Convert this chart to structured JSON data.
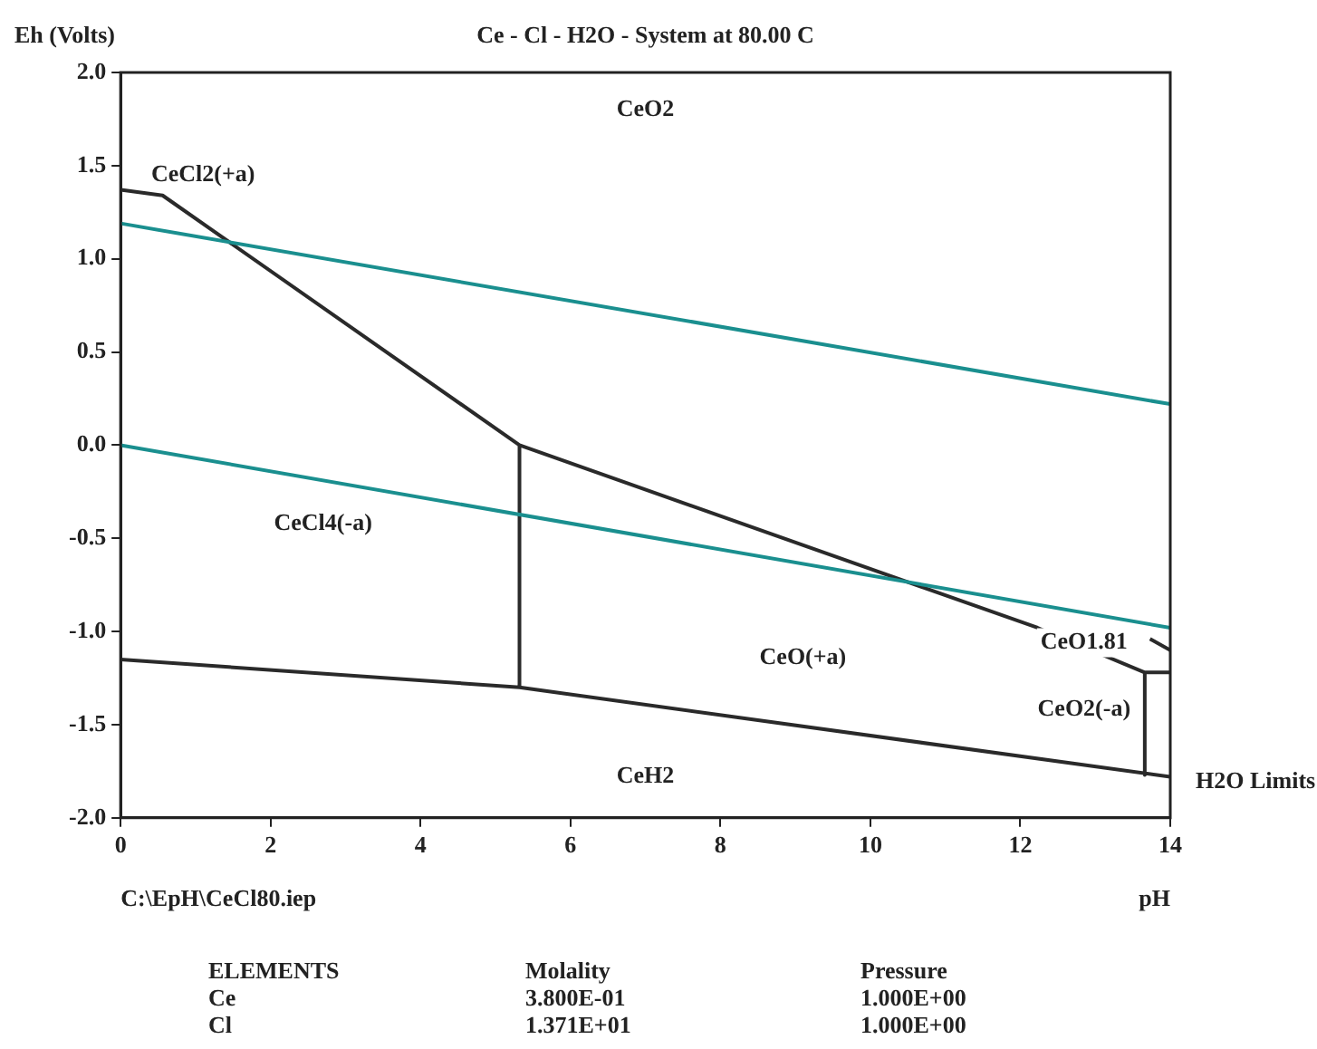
{
  "chart_data": {
    "type": "line",
    "title": "Ce - Cl - H2O - System at 80.00 C",
    "xlabel": "pH",
    "ylabel": "Eh (Volts)",
    "xlim": [
      0,
      14
    ],
    "xticks": [
      0,
      2,
      4,
      6,
      8,
      10,
      12,
      14
    ],
    "ylim": [
      -2,
      2
    ],
    "yticks": [
      {
        "value": -2,
        "label": "-2.0"
      },
      {
        "value": -1.5,
        "label": "-1.5"
      },
      {
        "value": -1,
        "label": "-1.0"
      },
      {
        "value": -0.5,
        "label": "-0.5"
      },
      {
        "value": 0,
        "label": "0.0"
      },
      {
        "value": 0.5,
        "label": "0.5"
      },
      {
        "value": 1,
        "label": "1.0"
      },
      {
        "value": 1.5,
        "label": "1.5"
      },
      {
        "value": 2,
        "label": "2.0"
      }
    ],
    "grid": false,
    "legend": false,
    "marker": "none",
    "line_style": "solid",
    "series": [
      {
        "color": "#1a8f8f",
        "x": [
          0,
          14
        ],
        "values": [
          1.19,
          0.22
        ]
      },
      {
        "color": "#1a8f8f",
        "x": [
          0,
          14
        ],
        "values": [
          0,
          -0.98
        ]
      },
      {
        "color": "#2a2a2a",
        "x": [
          0,
          5.32,
          14,
          null,
          5.32,
          5.32,
          0.56,
          0,
          null,
          5.32,
          12.23,
          13.66,
          14,
          null,
          13.66,
          13.66,
          null,
          13.73,
          14
        ],
        "values": [
          -1.15,
          -1.3,
          -1.78,
          null,
          -1.3,
          0,
          1.34,
          1.37,
          null,
          0,
          -0.98,
          -1.22,
          -1.22,
          null,
          -1.22,
          -1.77,
          null,
          -1.04,
          -1.1
        ]
      }
    ],
    "annotations": [
      "CeO2",
      "CeCl2(+a)",
      "CeCl4(-a)",
      "CeO(+a)",
      "CeO1.81",
      "CeO2(-a)",
      "CeH2",
      "H2O Limits",
      "C:\\EpH\\CeCl80.iep",
      "ELEMENTS",
      "Molality",
      "Pressure",
      "Ce",
      "3.800E-01",
      "1.000E+00",
      "Cl",
      "1.371E+01",
      "1.000E+00"
    ]
  }
}
